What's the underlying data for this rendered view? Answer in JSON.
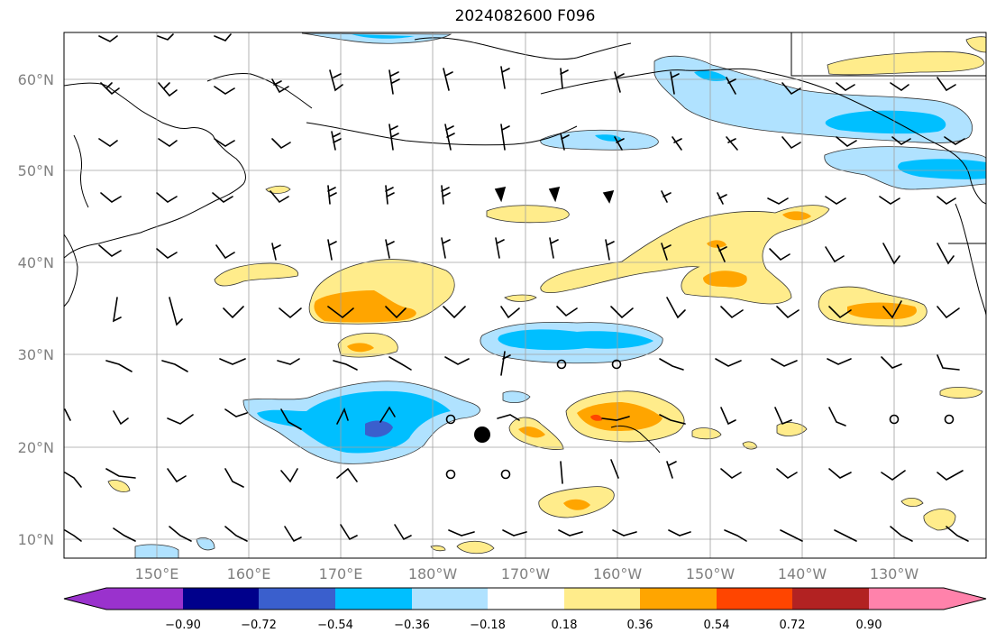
{
  "title": "2024082600 F096",
  "lat_labels": [
    "60°N",
    "50°N",
    "40°N",
    "30°N",
    "20°N",
    "10°N"
  ],
  "lon_labels": [
    "150°E",
    "160°E",
    "170°E",
    "180°W",
    "170°W",
    "160°W",
    "150°W",
    "140°W",
    "130°W"
  ],
  "colorbar": {
    "tick_labels": [
      "−0.90",
      "−0.72",
      "−0.54",
      "−0.36",
      "−0.18",
      "0.18",
      "0.36",
      "0.54",
      "0.72",
      "0.90"
    ],
    "colors": [
      "#9a32cd",
      "#00008b",
      "#3a5fcd",
      "#00bfff",
      "#b0e2ff",
      "#ffffff",
      "#ffec8b",
      "#ffa500",
      "#ff4500",
      "#b22222",
      "#ff82ab"
    ]
  },
  "colors": {
    "pos1": "#ffec8b",
    "pos2": "#ffa500",
    "pos3": "#ff4500",
    "neg1": "#b0e2ff",
    "neg2": "#00bfff",
    "neg3": "#3a5fcd"
  },
  "markers": {
    "storm_symbol": "filled-circle",
    "calm_symbol": "open-circle"
  }
}
